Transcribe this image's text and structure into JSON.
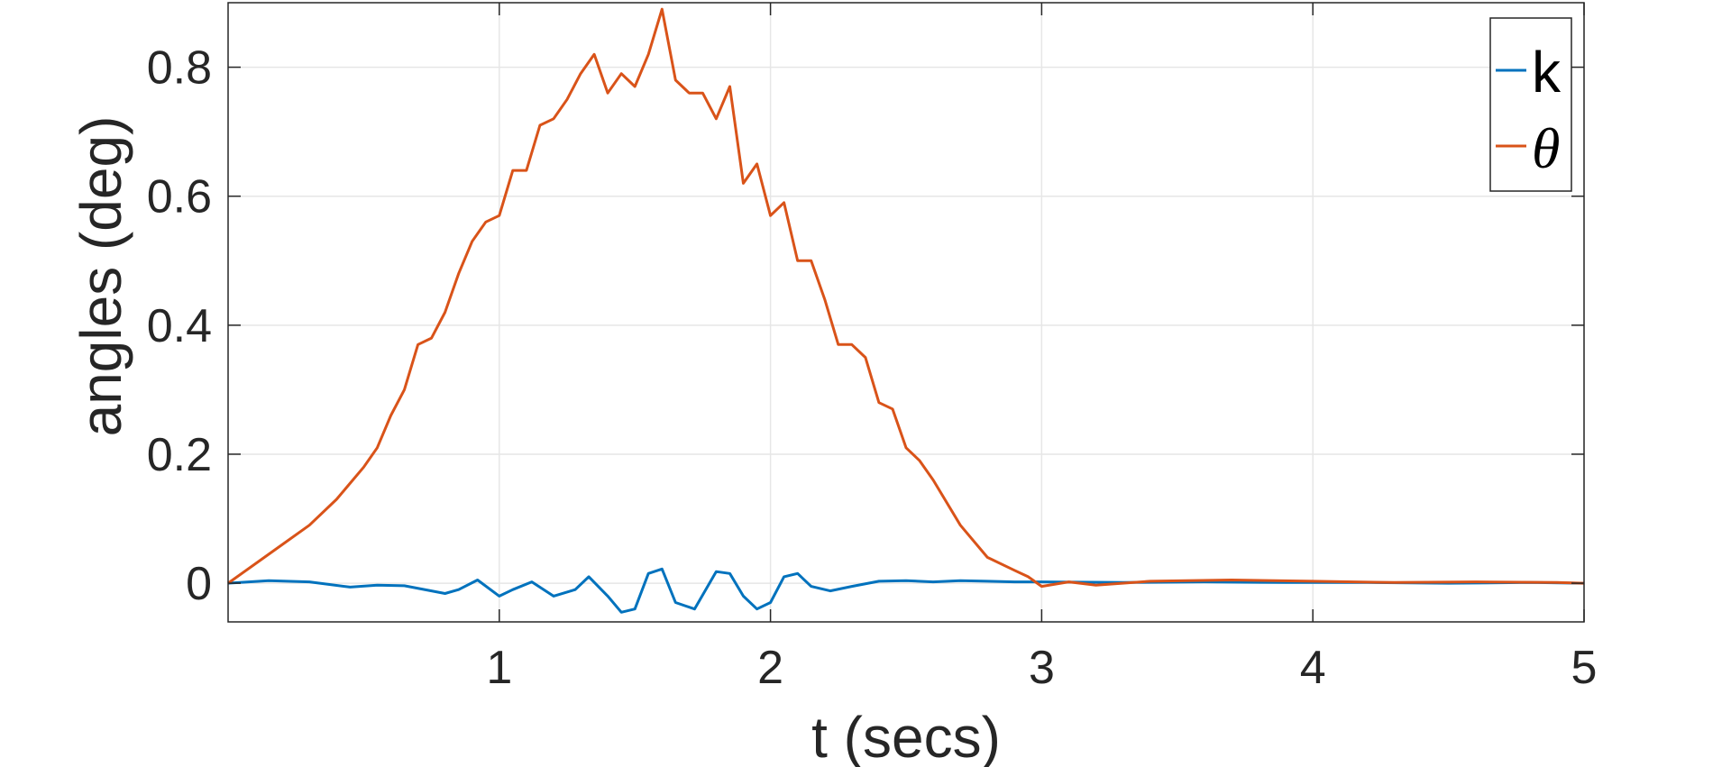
{
  "chart_data": {
    "type": "line",
    "title": "",
    "xlabel": "t (secs)",
    "ylabel": "angles (deg)",
    "xlim": [
      0,
      5
    ],
    "ylim": [
      -0.06,
      0.9
    ],
    "xticks": [
      1,
      2,
      3,
      4,
      5
    ],
    "xtick_labels": [
      "1",
      "2",
      "3",
      "4",
      "5"
    ],
    "yticks": [
      0,
      0.2,
      0.4,
      0.6,
      0.8
    ],
    "ytick_labels": [
      "0",
      "0.2",
      "0.4",
      "0.6",
      "0.8"
    ],
    "grid": true,
    "legend_position": "top-right",
    "colors": {
      "axis": "#262626",
      "grid": "#e6e6e6",
      "legend_border": "#262626"
    },
    "series": [
      {
        "name": "k",
        "color": "#0072bd",
        "x": [
          0,
          0.15,
          0.3,
          0.45,
          0.55,
          0.65,
          0.75,
          0.8,
          0.85,
          0.92,
          1.0,
          1.05,
          1.12,
          1.2,
          1.28,
          1.33,
          1.4,
          1.45,
          1.5,
          1.55,
          1.6,
          1.65,
          1.72,
          1.8,
          1.85,
          1.9,
          1.95,
          2.0,
          2.05,
          2.1,
          2.15,
          2.22,
          2.3,
          2.4,
          2.5,
          2.6,
          2.7,
          2.8,
          2.9,
          3.0,
          3.3,
          3.6,
          3.9,
          4.2,
          4.5,
          4.8,
          5.0
        ],
        "y": [
          0,
          0.004,
          0.002,
          -0.006,
          -0.003,
          -0.004,
          -0.012,
          -0.016,
          -0.01,
          0.005,
          -0.02,
          -0.01,
          0.002,
          -0.02,
          -0.01,
          0.01,
          -0.02,
          -0.045,
          -0.04,
          0.015,
          0.022,
          -0.03,
          -0.04,
          0.018,
          0.015,
          -0.02,
          -0.04,
          -0.03,
          0.01,
          0.015,
          -0.005,
          -0.012,
          -0.005,
          0.003,
          0.004,
          0.002,
          0.004,
          0.003,
          0.002,
          0.002,
          0.001,
          0.002,
          0.001,
          0.001,
          0.0,
          0.001,
          0.0
        ]
      },
      {
        "name": "θ",
        "color": "#d95319",
        "x": [
          0,
          0.1,
          0.2,
          0.3,
          0.4,
          0.5,
          0.55,
          0.6,
          0.65,
          0.7,
          0.75,
          0.8,
          0.85,
          0.9,
          0.95,
          1.0,
          1.05,
          1.1,
          1.15,
          1.2,
          1.25,
          1.3,
          1.35,
          1.4,
          1.45,
          1.5,
          1.55,
          1.6,
          1.65,
          1.7,
          1.75,
          1.8,
          1.85,
          1.9,
          1.95,
          2.0,
          2.05,
          2.1,
          2.15,
          2.2,
          2.25,
          2.3,
          2.35,
          2.4,
          2.45,
          2.5,
          2.55,
          2.6,
          2.7,
          2.8,
          2.9,
          2.95,
          3.0,
          3.1,
          3.2,
          3.4,
          3.7,
          4.0,
          4.3,
          4.6,
          4.9,
          5.0
        ],
        "y": [
          0,
          0.03,
          0.06,
          0.09,
          0.13,
          0.18,
          0.21,
          0.26,
          0.3,
          0.37,
          0.38,
          0.42,
          0.48,
          0.53,
          0.56,
          0.57,
          0.64,
          0.64,
          0.71,
          0.72,
          0.75,
          0.79,
          0.82,
          0.76,
          0.79,
          0.77,
          0.82,
          0.89,
          0.78,
          0.76,
          0.76,
          0.72,
          0.77,
          0.62,
          0.65,
          0.57,
          0.59,
          0.5,
          0.5,
          0.44,
          0.37,
          0.37,
          0.35,
          0.28,
          0.27,
          0.21,
          0.19,
          0.16,
          0.09,
          0.04,
          0.02,
          0.01,
          -0.005,
          0.002,
          -0.003,
          0.003,
          0.005,
          0.003,
          0.001,
          0.002,
          0.001,
          0.0
        ]
      }
    ]
  }
}
